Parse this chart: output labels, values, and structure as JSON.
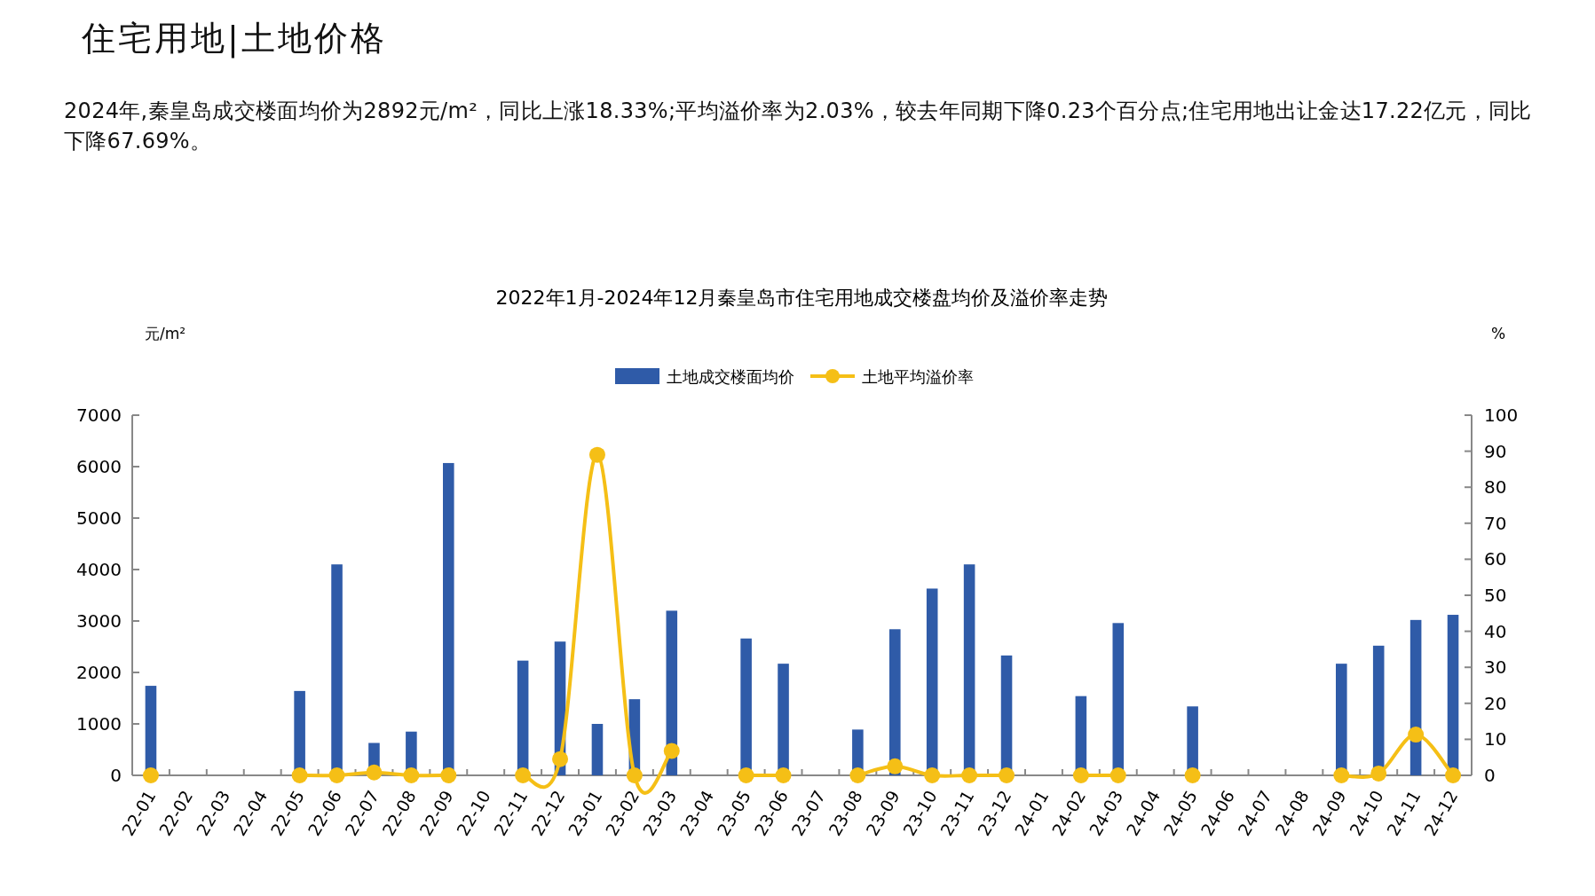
{
  "chart_data": {
    "type": "bar",
    "title": "2022年1月-2024年12月秦皇岛市住宅用地成交楼盘均价及溢价率走势",
    "annotations": [
      "住宅用地|土地价格",
      "2024年,秦皇岛成交楼面均价为2892元/m²，同比上涨18.33%;平均溢价率为2.03%，较去年同期下降0.23个百分点;住宅用地出让金达17.22亿元，同比下降67.69%。"
    ],
    "ylabel": "元/m²",
    "y2label": "%",
    "categories": [
      "22-01",
      "22-02",
      "22-03",
      "22-04",
      "22-05",
      "22-06",
      "22-07",
      "22-08",
      "22-09",
      "22-10",
      "22-11",
      "22-12",
      "23-01",
      "23-02",
      "23-03",
      "23-04",
      "23-05",
      "23-06",
      "23-07",
      "23-08",
      "23-09",
      "23-10",
      "23-11",
      "23-12",
      "24-01",
      "24-02",
      "24-03",
      "24-04",
      "24-05",
      "24-06",
      "24-07",
      "24-08",
      "24-09",
      "24-10",
      "24-11",
      "24-12"
    ],
    "series": [
      {
        "name": "土地成交楼面均价",
        "color": "#2f5ba8",
        "values": [
          1740,
          null,
          null,
          null,
          1640,
          4100,
          630,
          850,
          6070,
          null,
          2230,
          2600,
          1000,
          1480,
          3200,
          null,
          2660,
          2170,
          null,
          890,
          2840,
          3630,
          4100,
          2330,
          null,
          1540,
          2960,
          null,
          1340,
          null,
          null,
          null,
          2170,
          2520,
          3020,
          3120
        ]
      },
      {
        "name": "土地平均溢价率",
        "type": "line",
        "axis": "y2",
        "color": "#f5bf16",
        "values": [
          0,
          null,
          null,
          null,
          0,
          0,
          0.8,
          0,
          0,
          null,
          0,
          4.5,
          89,
          0,
          6.8,
          null,
          0,
          0,
          null,
          0,
          2.5,
          0,
          0,
          0,
          null,
          0,
          0,
          null,
          0,
          null,
          null,
          null,
          0,
          0.5,
          11.3,
          0
        ]
      }
    ],
    "ylim": [
      0,
      7000
    ],
    "yticks": [
      0,
      1000,
      2000,
      3000,
      4000,
      5000,
      6000,
      7000
    ],
    "y2lim": [
      0,
      100
    ],
    "y2ticks": [
      0,
      10,
      20,
      30,
      40,
      50,
      60,
      70,
      80,
      90,
      100
    ],
    "legend": "top",
    "marker": "circle",
    "line_style": "solid"
  }
}
